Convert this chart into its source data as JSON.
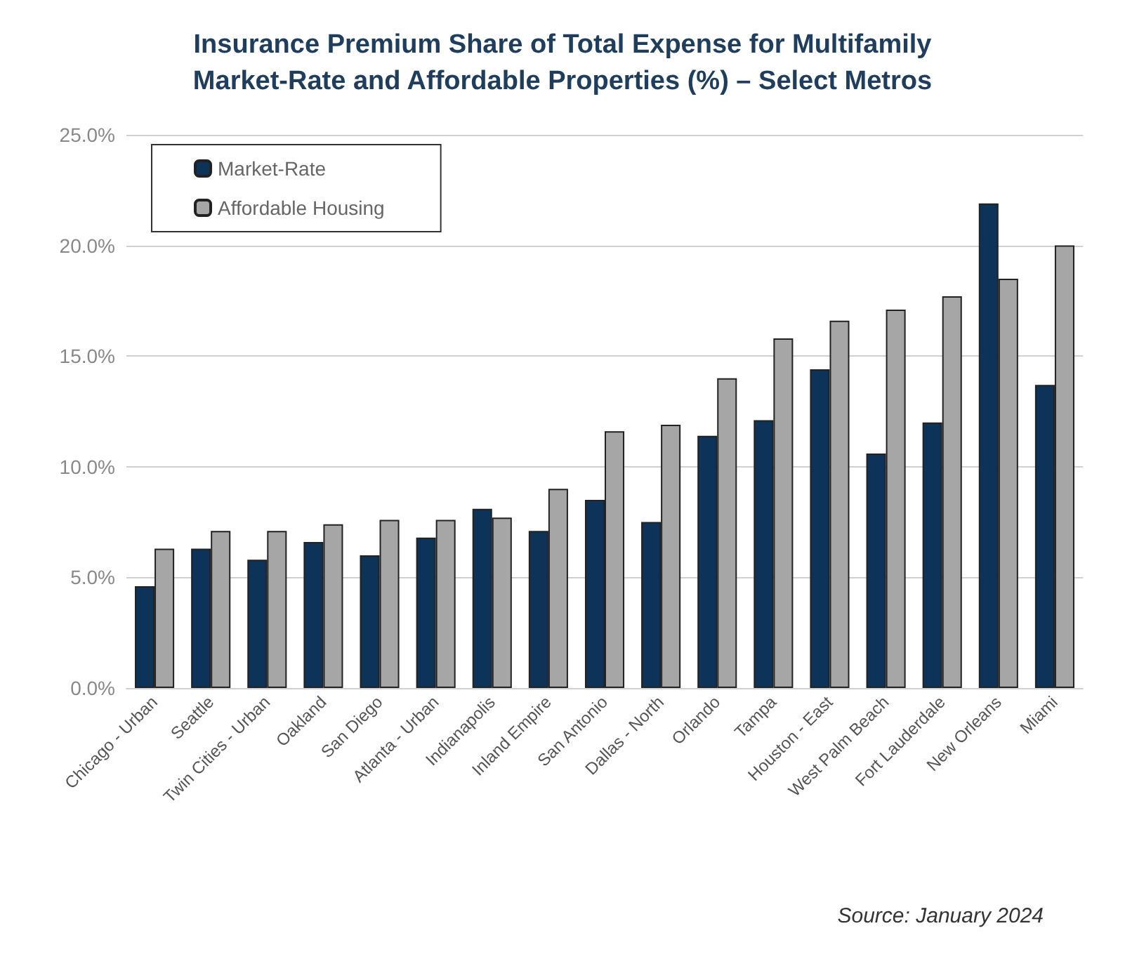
{
  "chart_data": {
    "type": "bar",
    "title": "Insurance Premium Share of Total Expense for Multifamily\nMarket-Rate and Affordable Properties (%) – Select Metros",
    "categories": [
      "Chicago - Urban",
      "Seattle",
      "Twin Cities - Urban",
      "Oakland",
      "San Diego",
      "Atlanta - Urban",
      "Indianapolis",
      "Inland Empire",
      "San Antonio",
      "Dallas - North",
      "Orlando",
      "Tampa",
      "Houston - East",
      "West Palm Beach",
      "Fort Lauderdale",
      "New Orleans",
      "Miami"
    ],
    "series": [
      {
        "name": "Market-Rate",
        "color": "#0d3358",
        "values": [
          4.6,
          6.3,
          5.8,
          6.6,
          6.0,
          6.8,
          8.1,
          7.1,
          8.5,
          7.5,
          11.4,
          12.1,
          14.4,
          10.6,
          12.0,
          21.9,
          13.7
        ]
      },
      {
        "name": "Affordable Housing",
        "color": "#a6a6a6",
        "values": [
          6.3,
          7.1,
          7.1,
          7.4,
          7.6,
          7.6,
          7.7,
          9.0,
          11.6,
          11.9,
          14.0,
          15.8,
          16.6,
          17.1,
          17.7,
          18.5,
          20.0
        ]
      }
    ],
    "ylim": [
      0,
      25
    ],
    "yticks": [
      {
        "value": 0,
        "label": "0.0%"
      },
      {
        "value": 5,
        "label": "5.0%"
      },
      {
        "value": 10,
        "label": "10.0%"
      },
      {
        "value": 15,
        "label": "15.0%"
      },
      {
        "value": 20,
        "label": "20.0%"
      },
      {
        "value": 25,
        "label": "25.0%"
      }
    ],
    "grid": "y",
    "legend": "top left",
    "annotations": [
      "Source: January 2024"
    ]
  }
}
